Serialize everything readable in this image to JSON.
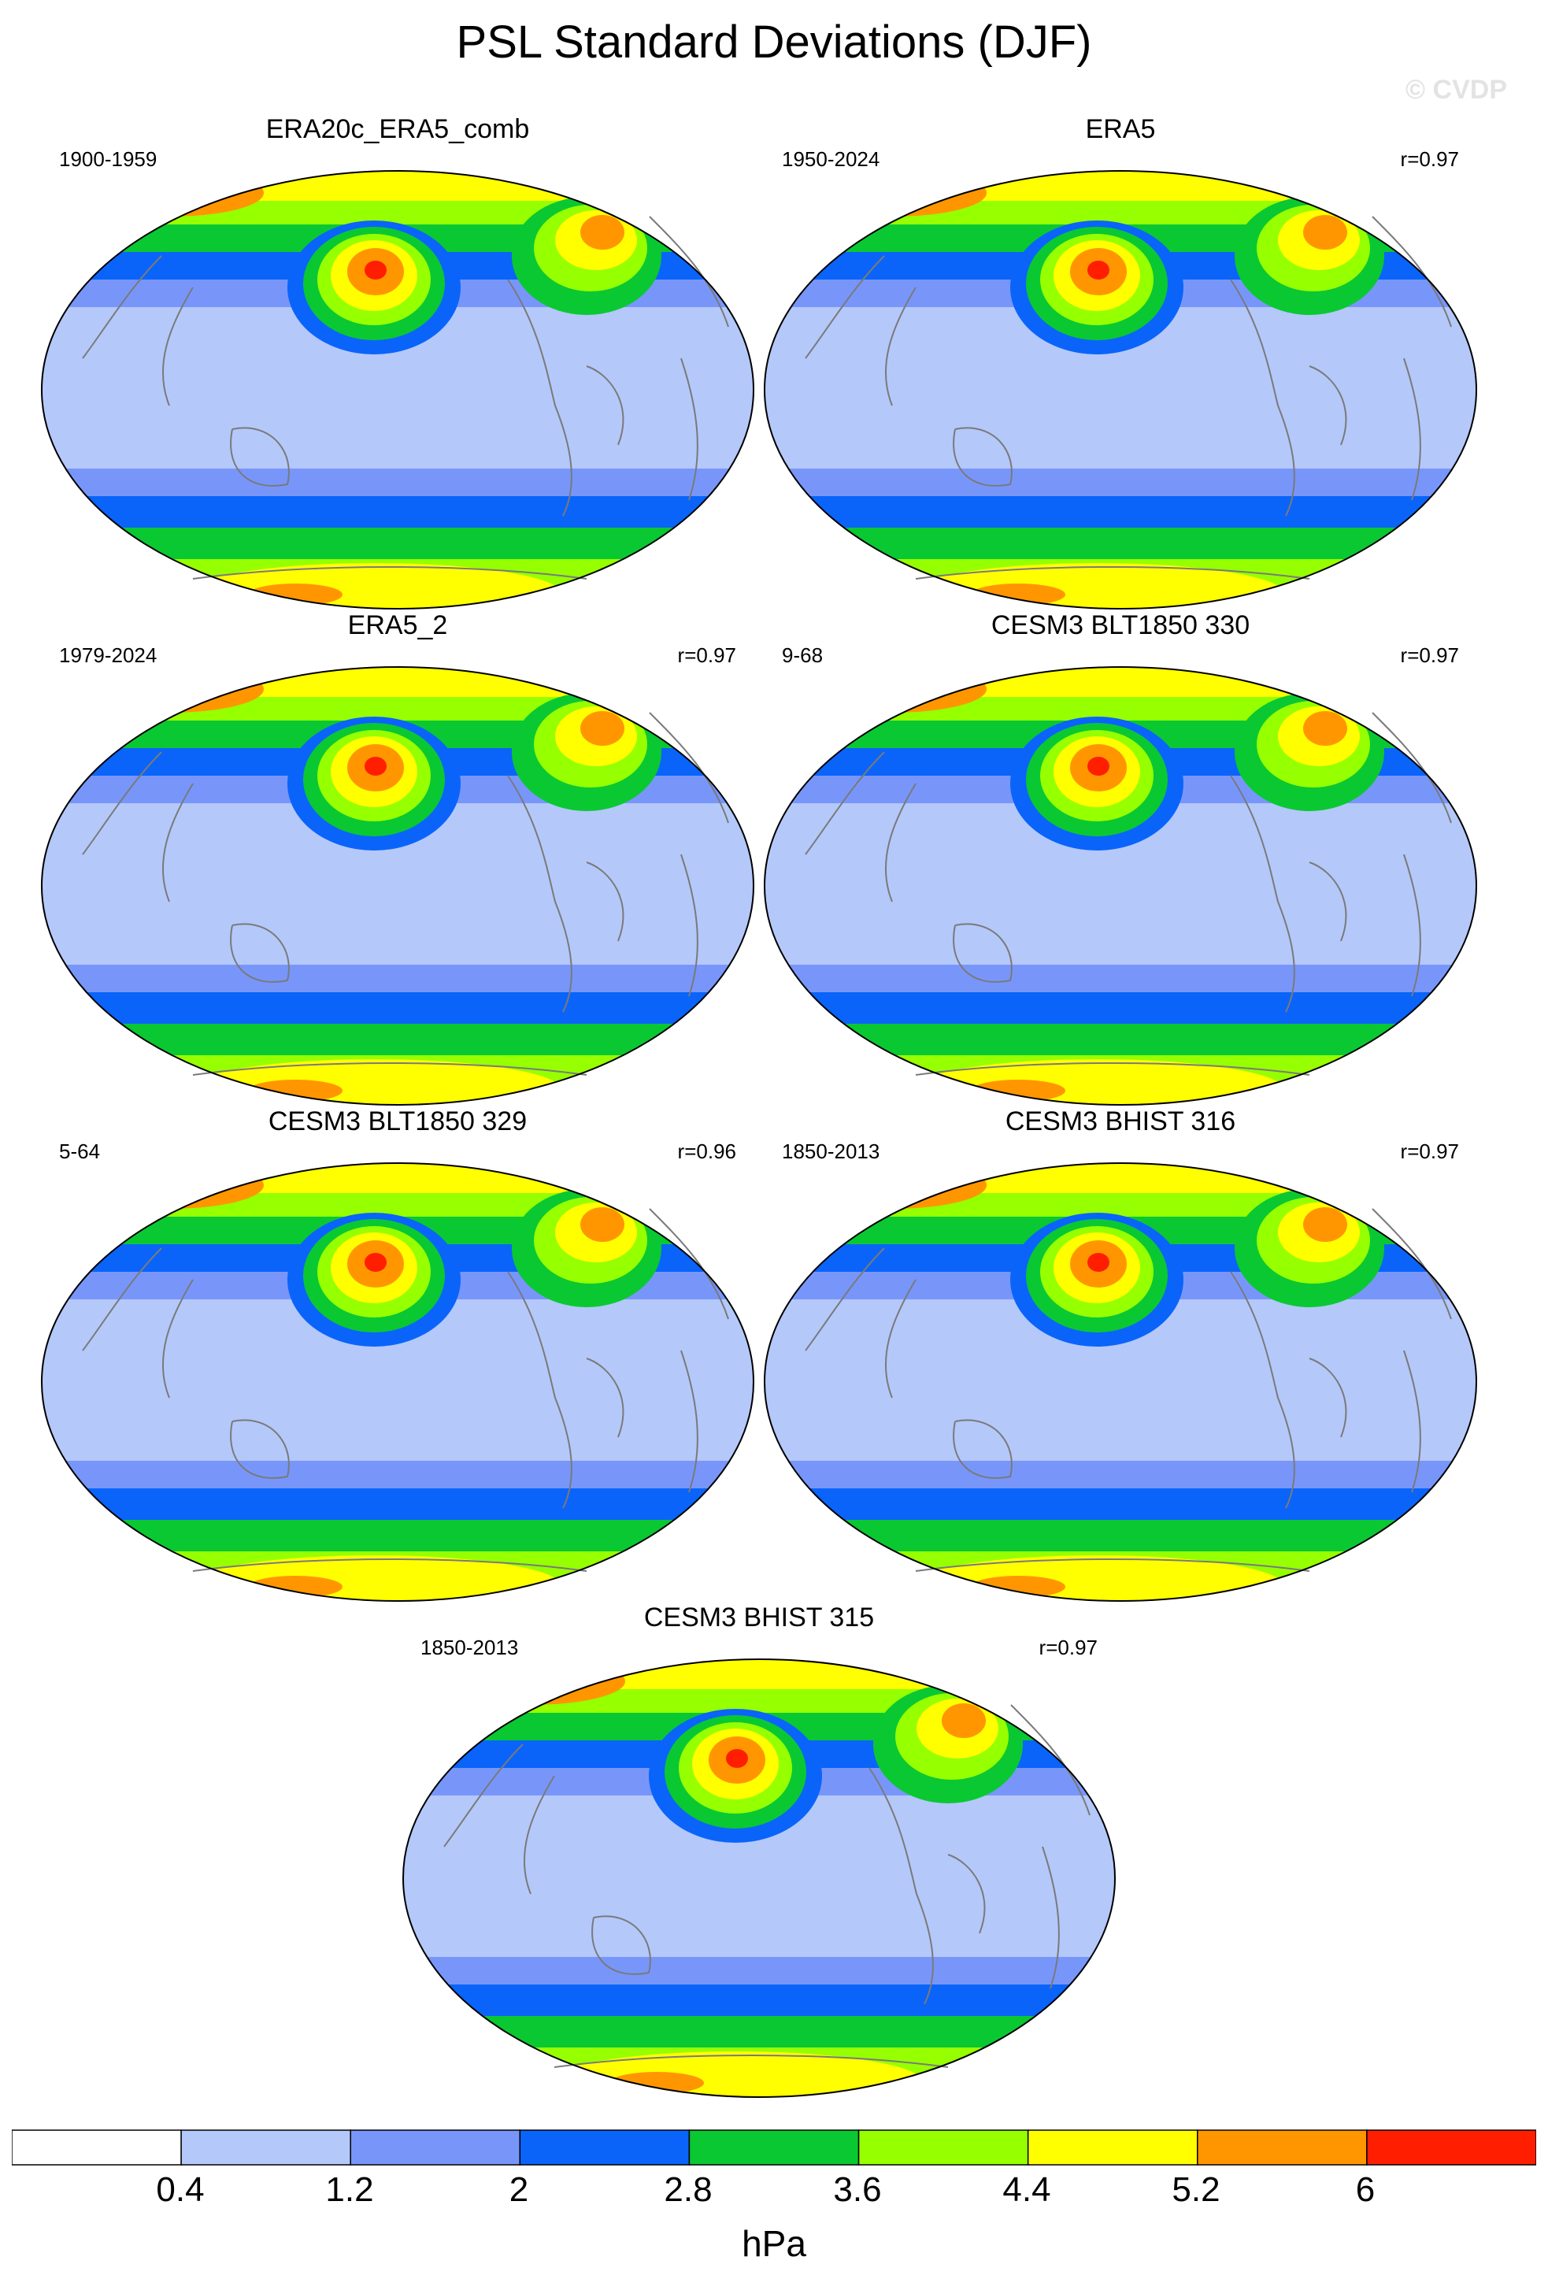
{
  "title": "PSL Standard Deviations (DJF)",
  "watermark": "© CVDP",
  "panels": [
    {
      "title": "ERA20c_ERA5_comb",
      "period": "1900-1959",
      "corr": ""
    },
    {
      "title": "ERA5",
      "period": "1950-2024",
      "corr": "r=0.97"
    },
    {
      "title": "ERA5_2",
      "period": "1979-2024",
      "corr": "r=0.97"
    },
    {
      "title": "CESM3 BLT1850 330",
      "period": "9-68",
      "corr": "r=0.97"
    },
    {
      "title": "CESM3 BLT1850 329",
      "period": "5-64",
      "corr": "r=0.96"
    },
    {
      "title": "CESM3 BHIST 316",
      "period": "1850-2013",
      "corr": "r=0.97"
    },
    {
      "title": "CESM3 BHIST 315",
      "period": "1850-2013",
      "corr": "r=0.97"
    }
  ],
  "colorbar": {
    "labels": [
      "0.4",
      "1.2",
      "2",
      "2.8",
      "3.6",
      "4.4",
      "5.2",
      "6"
    ],
    "colors": [
      "#ffffff",
      "#b4c8fa",
      "#7896fa",
      "#0a64fa",
      "#0ac832",
      "#96ff00",
      "#ffff00",
      "#ff9600",
      "#ff1e00"
    ],
    "unit": "hPa"
  }
}
